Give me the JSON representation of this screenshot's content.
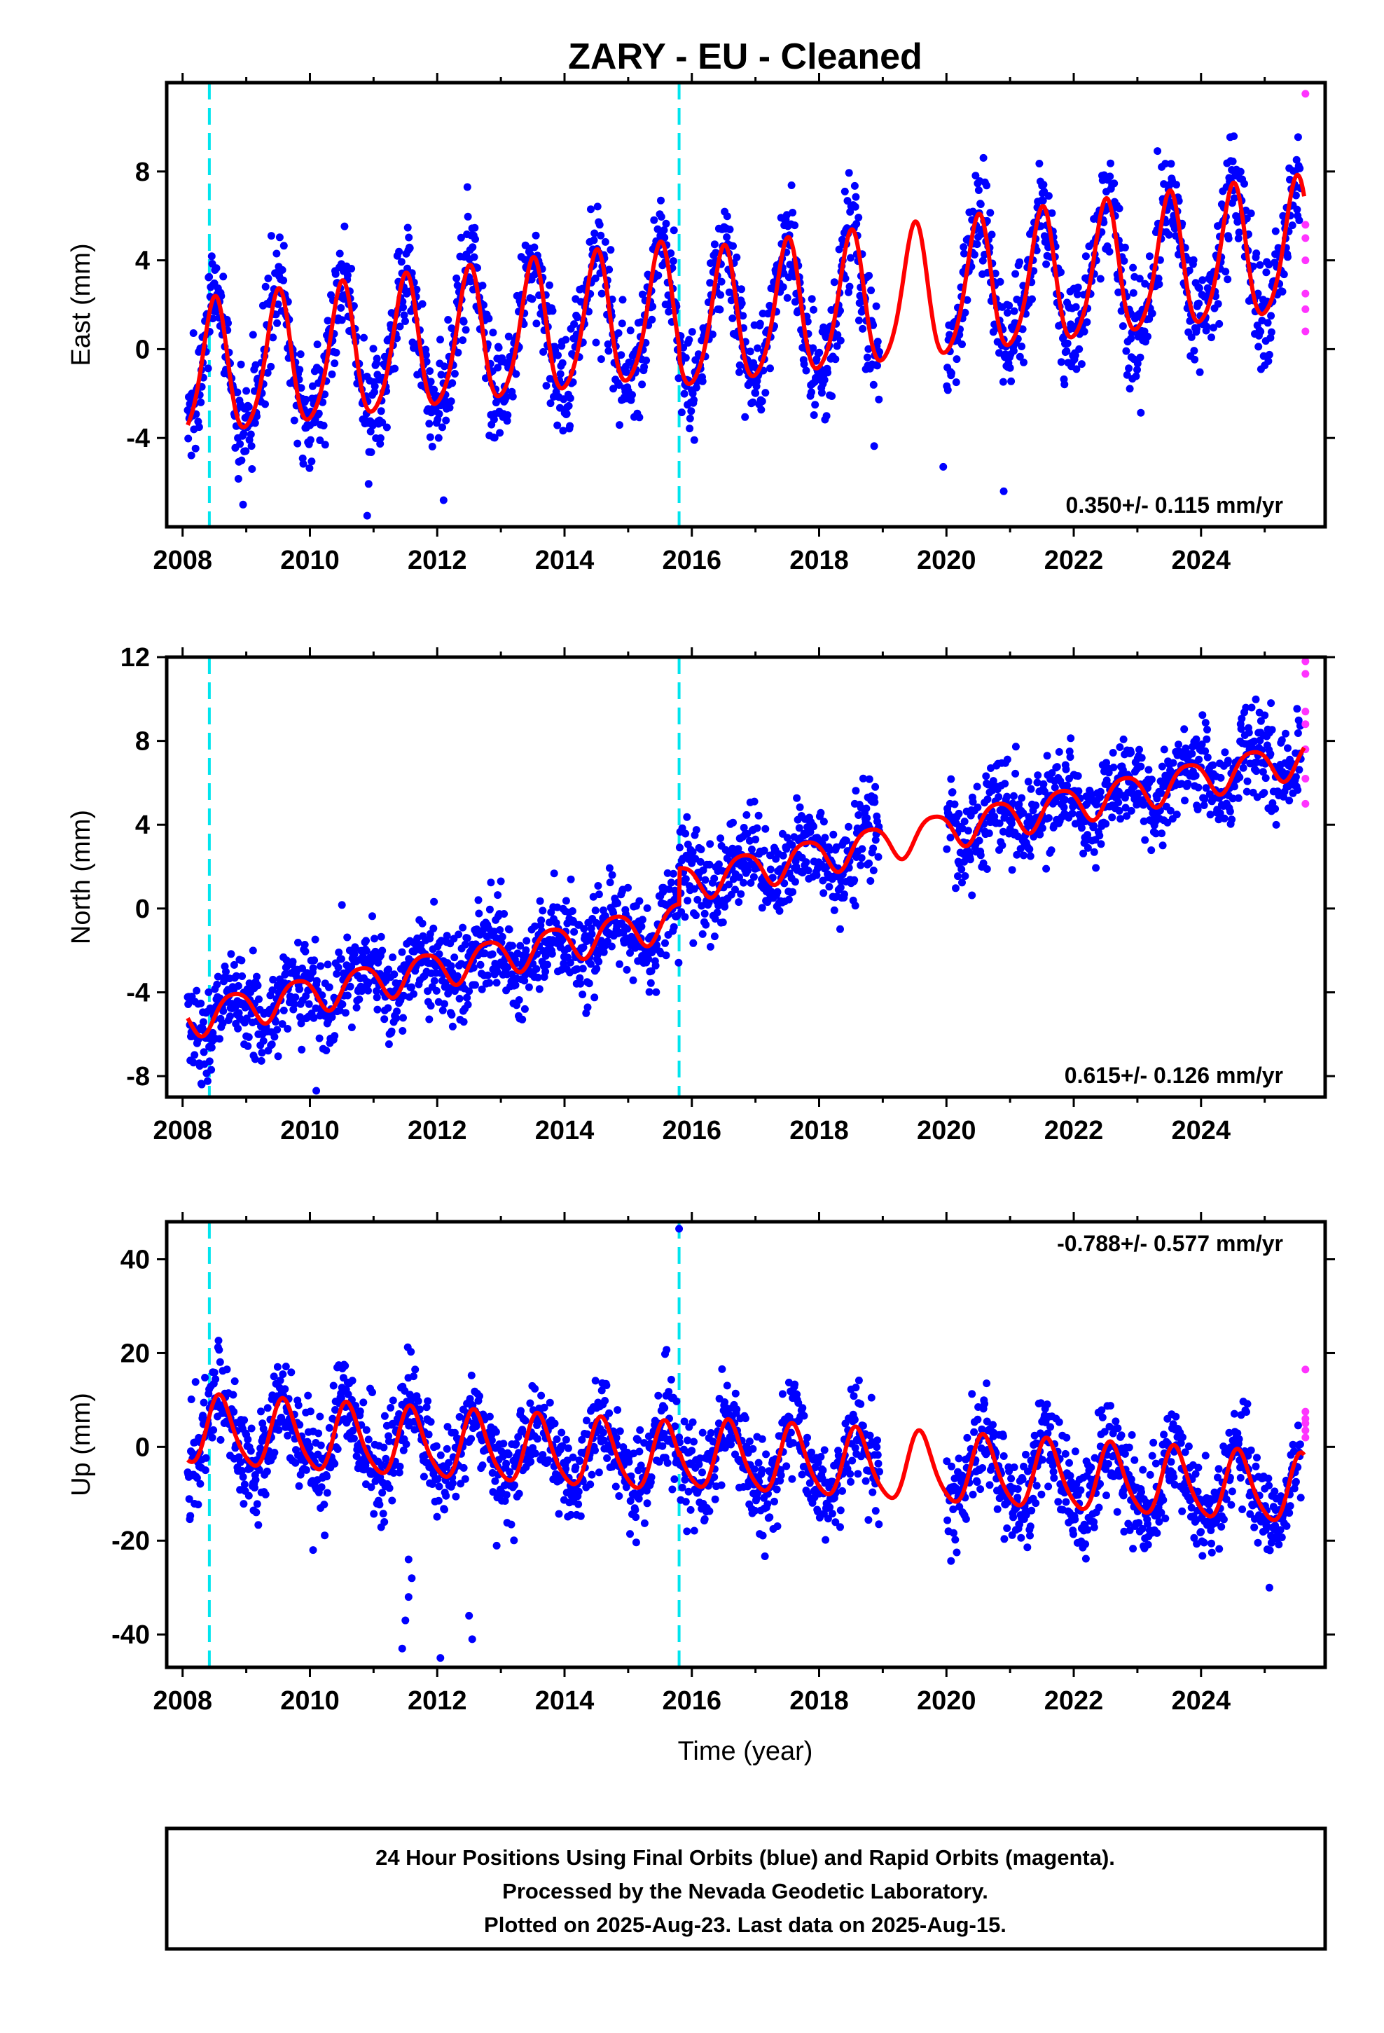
{
  "title": "ZARY  - EU - Cleaned",
  "x_axis_label": "Time (year)",
  "footer": [
    "24 Hour Positions Using Final Orbits (blue) and Rapid Orbits (magenta).",
    "Processed by the Nevada Geodetic Laboratory.",
    "Plotted on 2025-Aug-23. Last data on 2025-Aug-15."
  ],
  "colors": {
    "final_orbits": "#0000ff",
    "rapid_orbits": "#ff33ff",
    "model": "#ff0000",
    "equipment_change": "#00e5ee",
    "frame": "#000000"
  },
  "chart_data": [
    {
      "type": "scatter",
      "name": "East",
      "ylabel": "East (mm)",
      "xlim": [
        2007.75,
        2025.95
      ],
      "ylim": [
        -8,
        12
      ],
      "x_ticks": [
        2008,
        2010,
        2012,
        2014,
        2016,
        2018,
        2020,
        2022,
        2024
      ],
      "y_ticks": [
        -4,
        0,
        4,
        8
      ],
      "rate_label": "0.350+/- 0.115 mm/yr",
      "rate_position": "bottom-right",
      "equipment_change_epochs": [
        2008.42,
        2015.8
      ],
      "data_span": [
        2008.08,
        2025.62
      ],
      "data_gap": [
        2018.95,
        2020.0
      ],
      "model": {
        "intercept_at_2008": -1.2,
        "rate_mm_per_yr": 0.35,
        "offsets": [
          {
            "epoch": 2015.8,
            "value": -0.5
          }
        ],
        "annual_cos": -3.0,
        "annual_sin": 0.0,
        "semiannual_cos": 0.4,
        "semiannual_sin": 0.2
      },
      "scatter_sigma": 1.2,
      "rapid_orbit_values": [
        11.5,
        5.6,
        5.0,
        4.0,
        2.5,
        1.8,
        0.8
      ],
      "outliers": [
        [
          2008.95,
          -7.0
        ],
        [
          2010.9,
          -7.5
        ],
        [
          2012.1,
          -6.8
        ],
        [
          2019.95,
          -5.3
        ],
        [
          2020.9,
          -6.4
        ]
      ]
    },
    {
      "type": "scatter",
      "name": "North",
      "ylabel": "North (mm)",
      "xlim": [
        2007.75,
        2025.95
      ],
      "ylim": [
        -9,
        12
      ],
      "x_ticks": [
        2008,
        2010,
        2012,
        2014,
        2016,
        2018,
        2020,
        2022,
        2024
      ],
      "y_ticks": [
        -8,
        -4,
        0,
        4,
        8,
        12
      ],
      "rate_label": "0.615+/- 0.126 mm/yr",
      "rate_position": "bottom-right",
      "equipment_change_epochs": [
        2008.42,
        2015.8
      ],
      "data_span": [
        2008.08,
        2025.62
      ],
      "data_gap": [
        2018.95,
        2020.0
      ],
      "model": {
        "intercept_at_2008": -5.3,
        "rate_mm_per_yr": 0.615,
        "offsets": [
          {
            "epoch": 2015.8,
            "value": 1.7
          }
        ],
        "annual_cos": 0.3,
        "annual_sin": -0.8,
        "semiannual_cos": 0.1,
        "semiannual_sin": 0.1
      },
      "scatter_sigma": 1.1,
      "rapid_orbit_values": [
        11.8,
        11.2,
        9.4,
        8.8,
        7.6,
        6.2,
        5.0
      ],
      "outliers": [
        [
          2008.3,
          -8.4
        ],
        [
          2010.1,
          -8.7
        ],
        [
          2013.0,
          1.3
        ]
      ]
    },
    {
      "type": "scatter",
      "name": "Up",
      "ylabel": "Up (mm)",
      "xlim": [
        2007.75,
        2025.95
      ],
      "ylim": [
        -47,
        48
      ],
      "x_ticks": [
        2008,
        2010,
        2012,
        2014,
        2016,
        2018,
        2020,
        2022,
        2024
      ],
      "y_ticks": [
        -40,
        -20,
        0,
        20,
        40
      ],
      "rate_label": "-0.788+/- 0.577 mm/yr",
      "rate_position": "top-right",
      "equipment_change_epochs": [
        2008.42,
        2015.8
      ],
      "data_span": [
        2008.08,
        2025.62
      ],
      "data_gap": [
        2018.95,
        2020.0
      ],
      "model": {
        "intercept_at_2008": 3.5,
        "rate_mm_per_yr": -0.788,
        "offsets": [
          {
            "epoch": 2015.8,
            "value": 1.0
          }
        ],
        "annual_cos": -6.0,
        "annual_sin": -4.0,
        "semiannual_cos": 1.0,
        "semiannual_sin": 0.5
      },
      "scatter_sigma": 5.0,
      "rapid_orbit_values": [
        16.5,
        7.5,
        6.0,
        5.0,
        3.5,
        2.0
      ],
      "outliers": [
        [
          2015.8,
          46.5
        ],
        [
          2011.45,
          -43.0
        ],
        [
          2011.5,
          -37.0
        ],
        [
          2011.55,
          -32.0
        ],
        [
          2011.6,
          -28.0
        ],
        [
          2011.55,
          -24.0
        ],
        [
          2012.05,
          -45.0
        ],
        [
          2012.5,
          -36.0
        ],
        [
          2012.55,
          -41.0
        ],
        [
          2010.05,
          -22.0
        ]
      ]
    }
  ]
}
